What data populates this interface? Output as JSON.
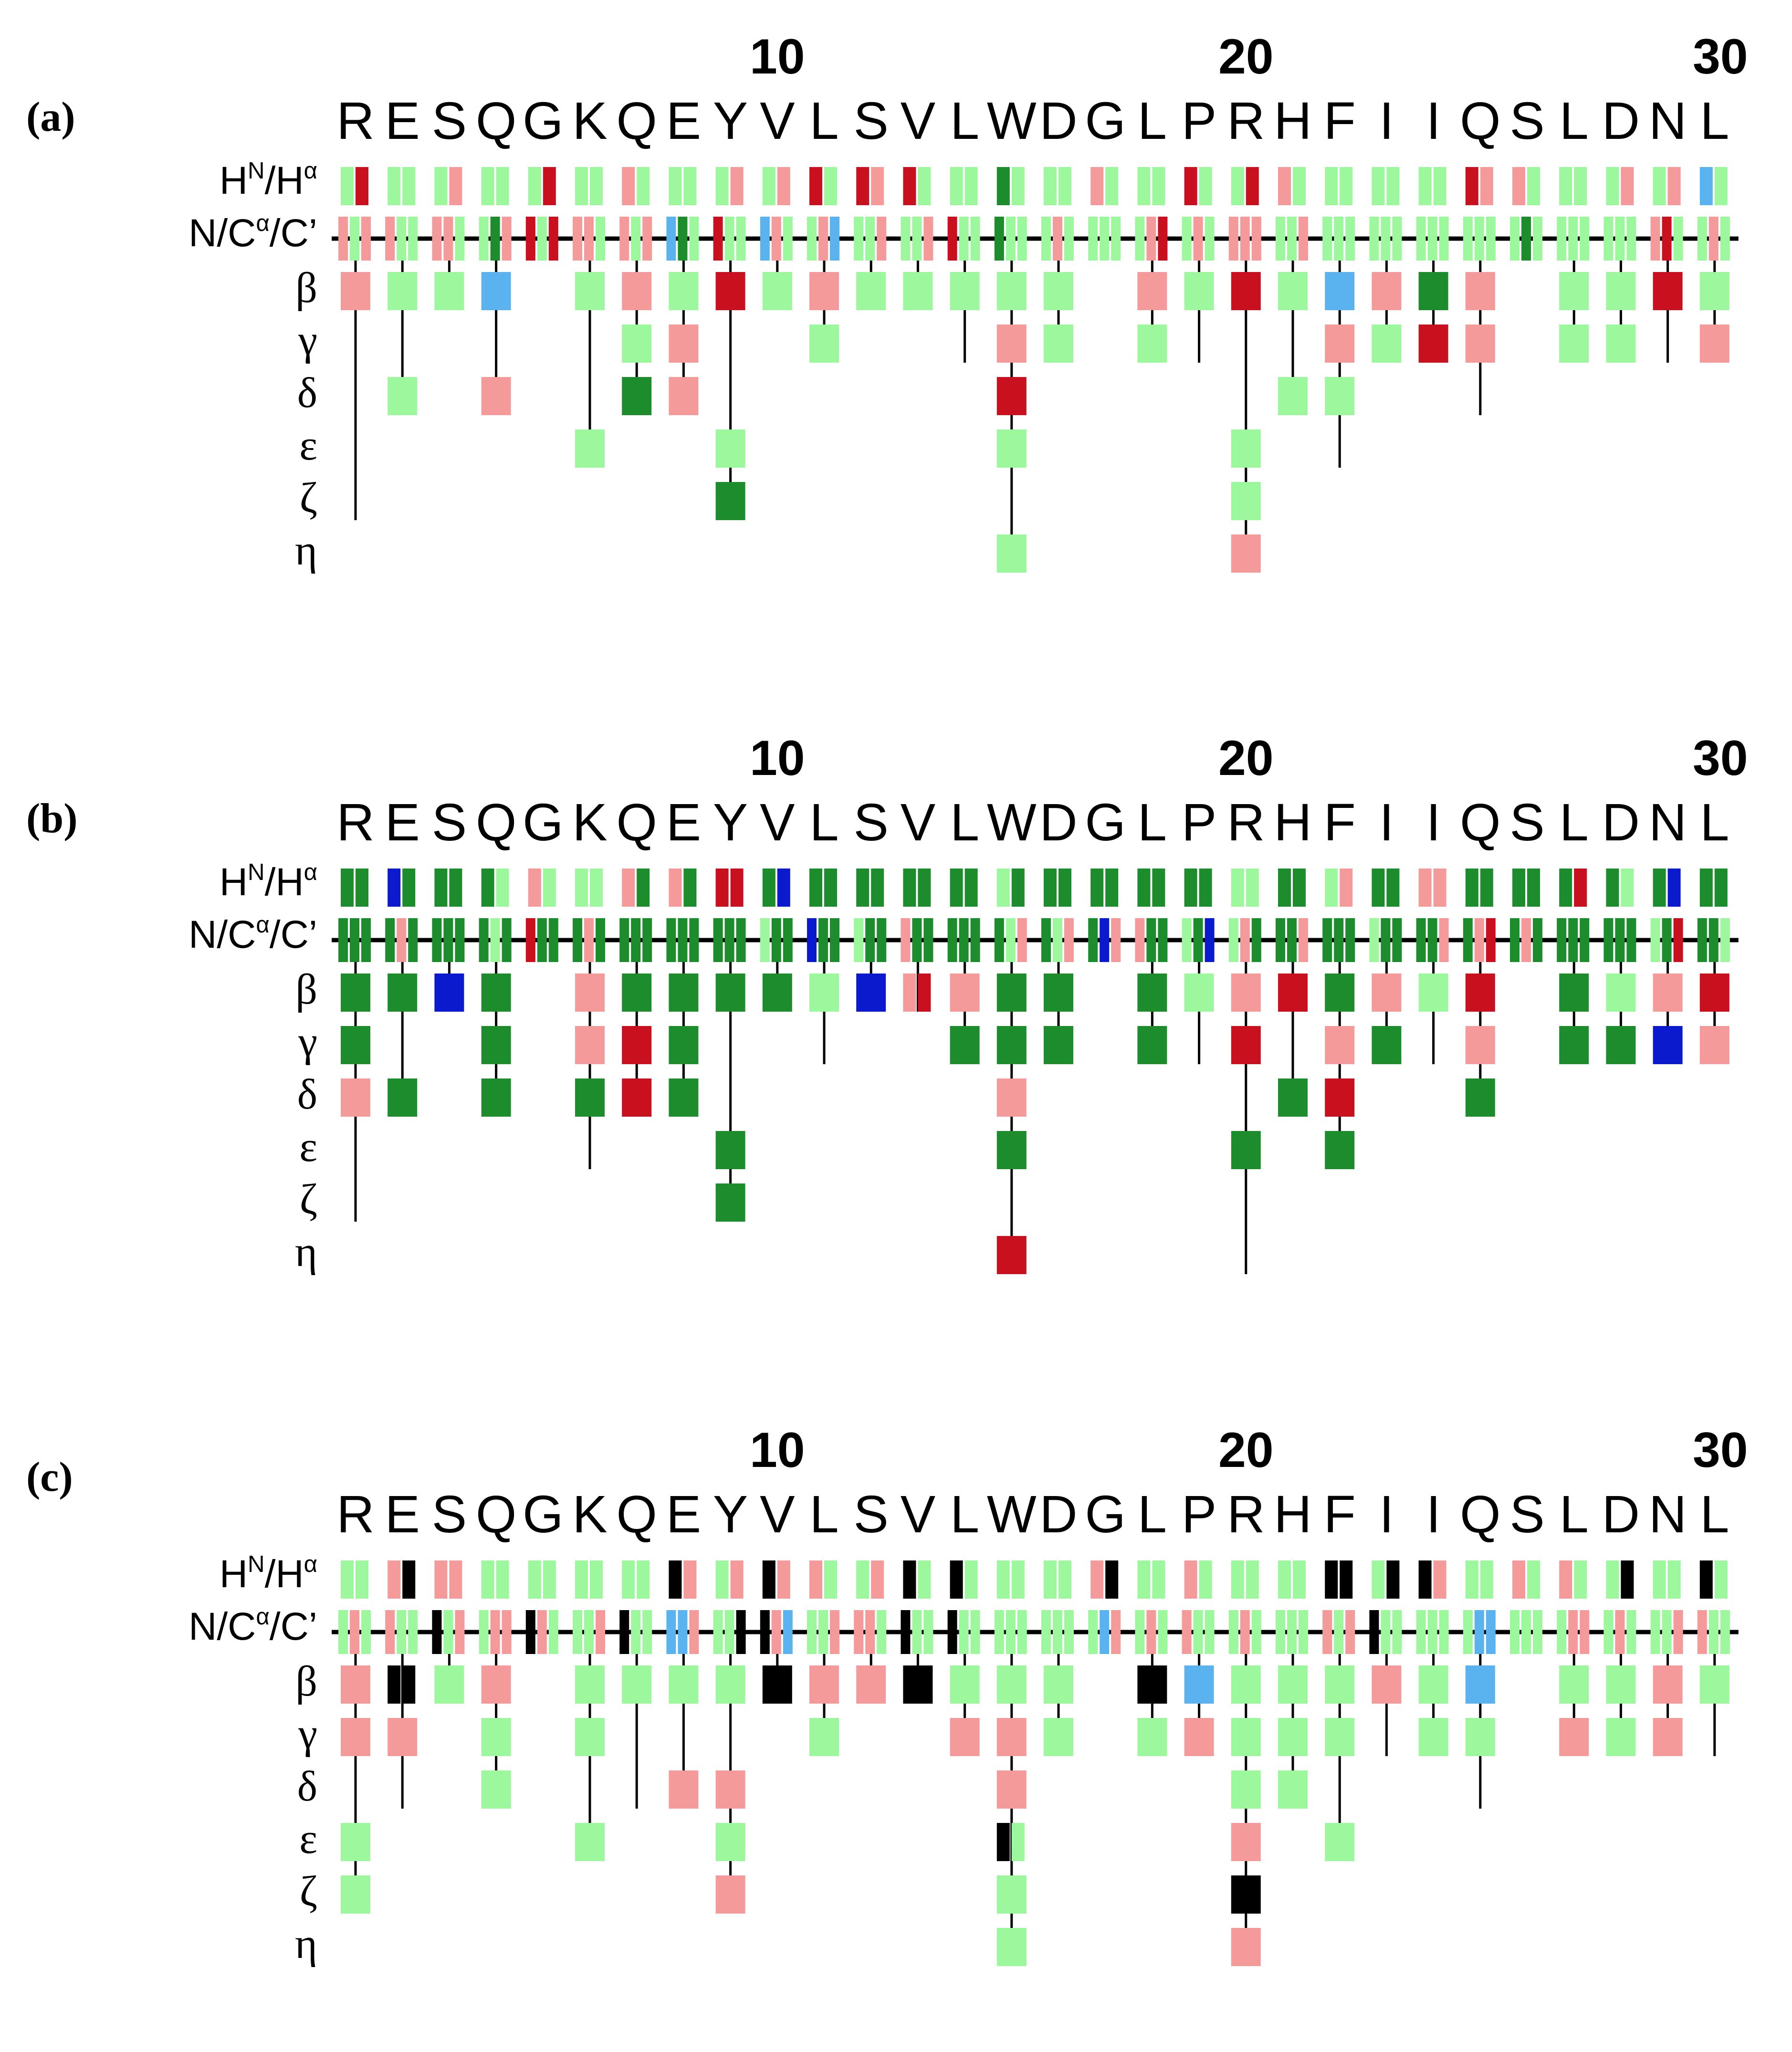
{
  "colors": {
    "light_green": "#9DF79D",
    "dark_green": "#1C8C2C",
    "light_red": "#F59A9A",
    "dark_red": "#C8101E",
    "light_blue": "#5AB2EE",
    "dark_blue": "#0A1ACC",
    "black": "#000000"
  },
  "sequence": [
    "R",
    "E",
    "S",
    "Q",
    "G",
    "K",
    "Q",
    "E",
    "Y",
    "V",
    "L",
    "S",
    "V",
    "L",
    "W",
    "D",
    "G",
    "L",
    "P",
    "R",
    "H",
    "F",
    "I",
    "I",
    "Q",
    "S",
    "L",
    "D",
    "N",
    "L"
  ],
  "tick_numbers": [
    "10",
    "20",
    "30"
  ],
  "row_labels": {
    "hn_ha": {
      "a": "H",
      "b": "N",
      "c": "/H",
      "d": "α"
    },
    "backbone": {
      "a": "N/C",
      "b": "α",
      "c": "/C’"
    },
    "beta": "β",
    "gamma": "γ",
    "delta": "δ",
    "epsilon": "ε",
    "zeta": "ζ",
    "eta": "η"
  },
  "panels": [
    {
      "label": "(a)",
      "scheme": "a"
    },
    {
      "label": "(b)",
      "scheme": "b"
    },
    {
      "label": "(c)",
      "scheme": "c"
    }
  ],
  "icons": {
    "panel_marker": "panel-letter-icon"
  }
}
